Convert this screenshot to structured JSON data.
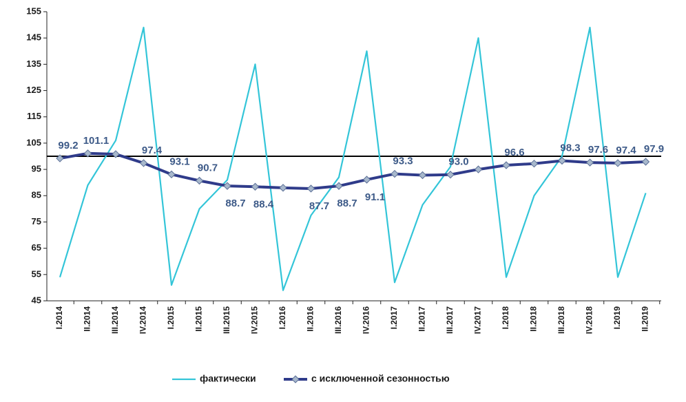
{
  "chart_data": {
    "type": "line",
    "categories": [
      "I.2014",
      "II.2014",
      "III.2014",
      "IV.2014",
      "I.2015",
      "II.2015",
      "III.2015",
      "IV.2015",
      "I.2016",
      "II.2016",
      "III.2016",
      "IV.2016",
      "I.2017",
      "II.2017",
      "III.2017",
      "IV.2017",
      "I.2018",
      "II.2018",
      "III.2018",
      "IV.2018",
      "I.2019",
      "II.2019"
    ],
    "series": [
      {
        "name": "фактически",
        "color": "#33c5d8",
        "markers": false,
        "values": [
          54,
          89,
          106,
          149,
          51,
          80,
          91,
          135,
          49,
          77.5,
          92,
          140,
          52,
          81.5,
          96,
          145,
          54,
          85,
          100,
          149,
          54,
          86
        ]
      },
      {
        "name": "с исключенной сезонностью",
        "color": "#2f3b8a",
        "markers": true,
        "marker_color": "#a8b8cc",
        "values": [
          99.2,
          101.1,
          100.8,
          97.4,
          93.1,
          90.7,
          88.7,
          88.4,
          88.0,
          87.7,
          88.7,
          91.1,
          93.3,
          92.8,
          93.0,
          95.0,
          96.6,
          97.2,
          98.3,
          97.6,
          97.4,
          97.9
        ],
        "value_labels": [
          "99.2",
          "101.1",
          null,
          "97.4",
          "93.1",
          "90.7",
          "88.7",
          "88.4",
          null,
          "87.7",
          "88.7",
          "91.1",
          "93.3",
          null,
          "93.0",
          null,
          "96.6",
          null,
          "98.3",
          "97.6",
          "97.4",
          "97.9"
        ]
      }
    ],
    "ylim": [
      45,
      155
    ],
    "yticks": [
      45,
      55,
      65,
      75,
      85,
      95,
      105,
      115,
      125,
      135,
      145,
      155
    ],
    "reference_line": 100,
    "grid": false,
    "legend": "bottom"
  }
}
